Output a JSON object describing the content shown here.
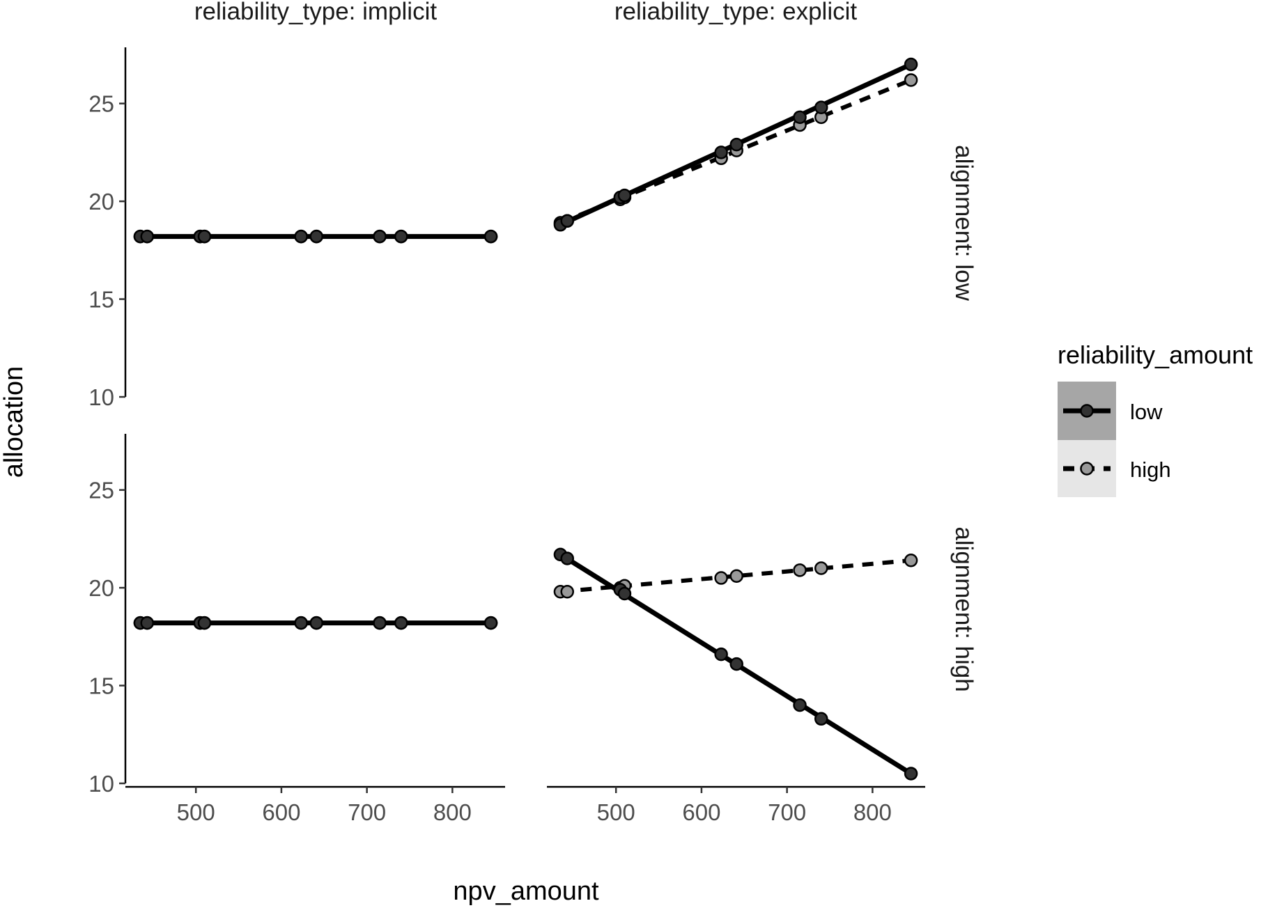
{
  "chart_data": {
    "type": "line",
    "xlabel": "npv_amount",
    "ylabel": "allocation",
    "xlim": [
      420,
      860
    ],
    "ylim": [
      10,
      27.8
    ],
    "xticks": [
      500,
      600,
      700,
      800
    ],
    "yticks": [
      10,
      15,
      20,
      25
    ],
    "grid": false,
    "column_facet_labels": [
      "reliability_type: implicit",
      "reliability_type: explicit"
    ],
    "row_facet_labels": [
      "alignment: low",
      "alignment: high"
    ],
    "legend": {
      "title": "reliability_amount",
      "position": "right",
      "entries": [
        "low",
        "high"
      ]
    },
    "x": [
      435,
      443,
      505,
      510,
      623,
      641,
      715,
      740,
      845
    ],
    "panels": [
      {
        "row": 0,
        "col": 0,
        "series": [
          {
            "legend_index": 0,
            "values": [
              18.2,
              18.2,
              18.2,
              18.2,
              18.2,
              18.2,
              18.2,
              18.2,
              18.2
            ]
          },
          {
            "legend_index": 1,
            "values": [
              18.2,
              18.2,
              18.2,
              18.2,
              18.2,
              18.2,
              18.2,
              18.2,
              18.2
            ]
          }
        ]
      },
      {
        "row": 0,
        "col": 1,
        "series": [
          {
            "legend_index": 0,
            "values": [
              18.8,
              19.0,
              20.2,
              20.3,
              22.5,
              22.9,
              24.3,
              24.8,
              27.0
            ]
          },
          {
            "legend_index": 1,
            "values": [
              18.9,
              19.0,
              20.1,
              20.2,
              22.2,
              22.6,
              23.9,
              24.3,
              26.2
            ]
          }
        ]
      },
      {
        "row": 1,
        "col": 0,
        "series": [
          {
            "legend_index": 0,
            "values": [
              18.2,
              18.2,
              18.2,
              18.2,
              18.2,
              18.2,
              18.2,
              18.2,
              18.2
            ]
          },
          {
            "legend_index": 1,
            "values": [
              18.2,
              18.2,
              18.2,
              18.2,
              18.2,
              18.2,
              18.2,
              18.2,
              18.2
            ]
          }
        ]
      },
      {
        "row": 1,
        "col": 1,
        "series": [
          {
            "legend_index": 0,
            "values": [
              21.7,
              21.5,
              19.9,
              19.7,
              16.6,
              16.1,
              14.0,
              13.3,
              10.5
            ]
          },
          {
            "legend_index": 1,
            "values": [
              19.8,
              19.8,
              20.0,
              20.1,
              20.5,
              20.6,
              20.9,
              21.0,
              21.4
            ]
          }
        ]
      }
    ],
    "colors": {
      "low_line": "#000000",
      "low_point": "#333333",
      "high_line": "#000000",
      "high_point": "#999999",
      "legend_key_low_bg": "#a6a6a6",
      "legend_key_high_bg": "#e6e6e6"
    }
  }
}
